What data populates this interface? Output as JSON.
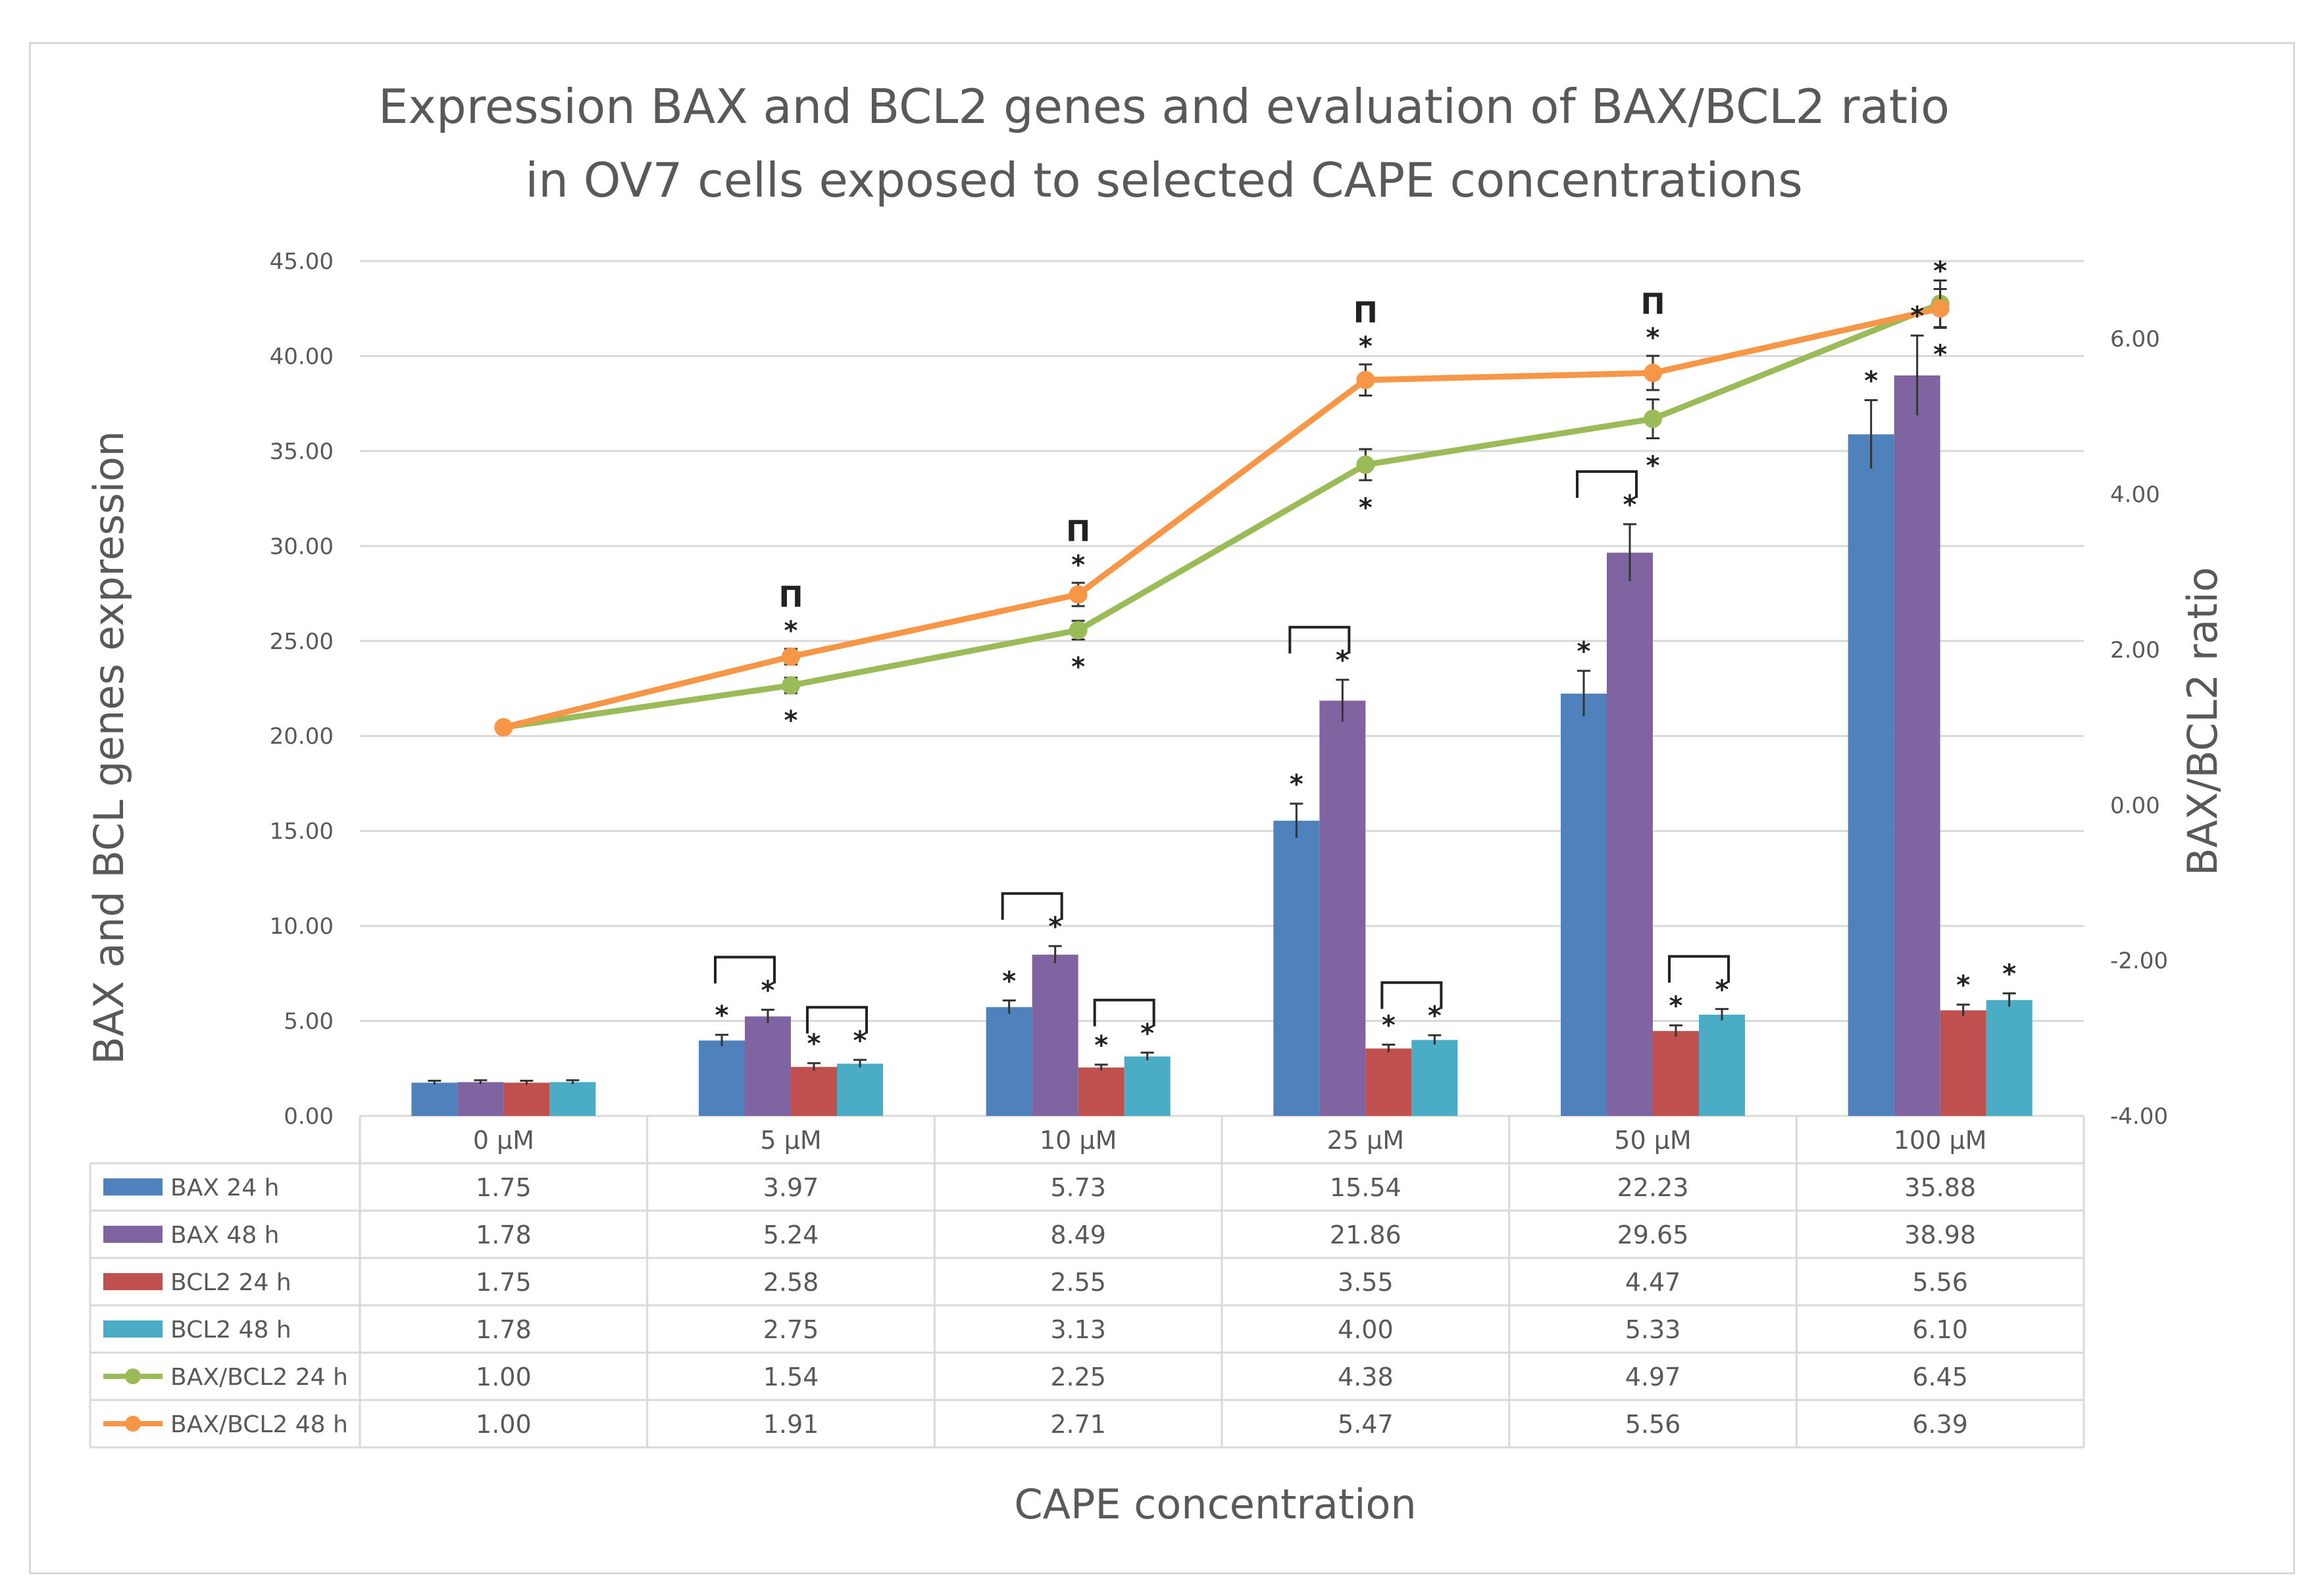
{
  "chart_data": {
    "type": "bar+line",
    "title_line1": "Expression BAX and BCL2 genes and evaluation of BAX/BCL2 ratio",
    "title_line2": "in OV7 cells exposed to selected CAPE concentrations",
    "xlabel": "CAPE concentration",
    "ylabel_left": "BAX and BCL genes expression",
    "ylabel_right": "BAX/BCL2  ratio",
    "categories": [
      "0 µM",
      "5 µM",
      "10 µM",
      "25 µM",
      "50 µM",
      "100 µM"
    ],
    "ylim_left": [
      0,
      45
    ],
    "yticks_left": [
      "0.00",
      "5.00",
      "10.00",
      "15.00",
      "20.00",
      "25.00",
      "30.00",
      "35.00",
      "40.00",
      "45.00"
    ],
    "ylim_right": [
      -4,
      7
    ],
    "yticks_right": [
      "-4.00",
      "-2.00",
      "0.00",
      "2.00",
      "4.00",
      "6.00"
    ],
    "bar_series": [
      {
        "name": "BAX 24 h",
        "color": "#4f81bd",
        "values": [
          1.75,
          3.97,
          5.73,
          15.54,
          22.23,
          35.88
        ],
        "errors": [
          0.1,
          0.3,
          0.35,
          0.9,
          1.2,
          1.8
        ],
        "table": [
          "1.75",
          "3.97",
          "5.73",
          "15.54",
          "22.23",
          "35.88"
        ]
      },
      {
        "name": "BAX 48 h",
        "color": "#8064a2",
        "values": [
          1.78,
          5.24,
          8.49,
          21.86,
          29.65,
          38.98
        ],
        "errors": [
          0.1,
          0.35,
          0.45,
          1.1,
          1.5,
          2.1
        ],
        "table": [
          "1.78",
          "5.24",
          "8.49",
          "21.86",
          "29.65",
          "38.98"
        ]
      },
      {
        "name": "BCL2 24 h",
        "color": "#c0504d",
        "values": [
          1.75,
          2.58,
          2.55,
          3.55,
          4.47,
          5.56
        ],
        "errors": [
          0.1,
          0.2,
          0.15,
          0.2,
          0.3,
          0.3
        ],
        "table": [
          "1.75",
          "2.58",
          "2.55",
          "3.55",
          "4.47",
          "5.56"
        ]
      },
      {
        "name": "BCL2 48 h",
        "color": "#4bacc6",
        "values": [
          1.78,
          2.75,
          3.13,
          4.0,
          5.33,
          6.1
        ],
        "errors": [
          0.1,
          0.2,
          0.2,
          0.25,
          0.3,
          0.35
        ],
        "table": [
          "1.78",
          "2.75",
          "3.13",
          "4.00",
          "5.33",
          "6.10"
        ]
      }
    ],
    "line_series": [
      {
        "name": "BAX/BCL2 24 h",
        "color": "#9bbb59",
        "values": [
          1.0,
          1.54,
          2.25,
          4.38,
          4.97,
          6.45
        ],
        "errors": [
          0.0,
          0.1,
          0.12,
          0.2,
          0.25,
          0.3
        ],
        "table": [
          "1.00",
          "1.54",
          "2.25",
          "4.38",
          "4.97",
          "6.45"
        ]
      },
      {
        "name": "BAX/BCL2 48 h",
        "color": "#f79646",
        "values": [
          1.0,
          1.91,
          2.71,
          5.47,
          5.56,
          6.39
        ],
        "errors": [
          0.0,
          0.1,
          0.15,
          0.2,
          0.22,
          0.25
        ],
        "table": [
          "1.00",
          "1.91",
          "2.71",
          "5.47",
          "5.56",
          "6.39"
        ]
      }
    ],
    "annotations": {
      "star": "*",
      "pi": "Π",
      "bar_stars": [
        [
          false,
          false,
          false,
          false
        ],
        [
          true,
          true,
          true,
          true
        ],
        [
          true,
          true,
          true,
          true
        ],
        [
          true,
          true,
          true,
          true
        ],
        [
          true,
          true,
          true,
          true
        ],
        [
          true,
          true,
          true,
          true
        ]
      ],
      "line24_stars": [
        false,
        true,
        true,
        true,
        true,
        true
      ],
      "line48_stars": [
        false,
        true,
        true,
        true,
        true,
        true
      ],
      "pi_marks": [
        false,
        true,
        true,
        true,
        true,
        false
      ],
      "bracket_bax": [
        false,
        true,
        true,
        true,
        true,
        false
      ],
      "bracket_bcl2": [
        false,
        true,
        true,
        true,
        true,
        false
      ]
    },
    "grid": true,
    "legend": "data-table-below"
  }
}
